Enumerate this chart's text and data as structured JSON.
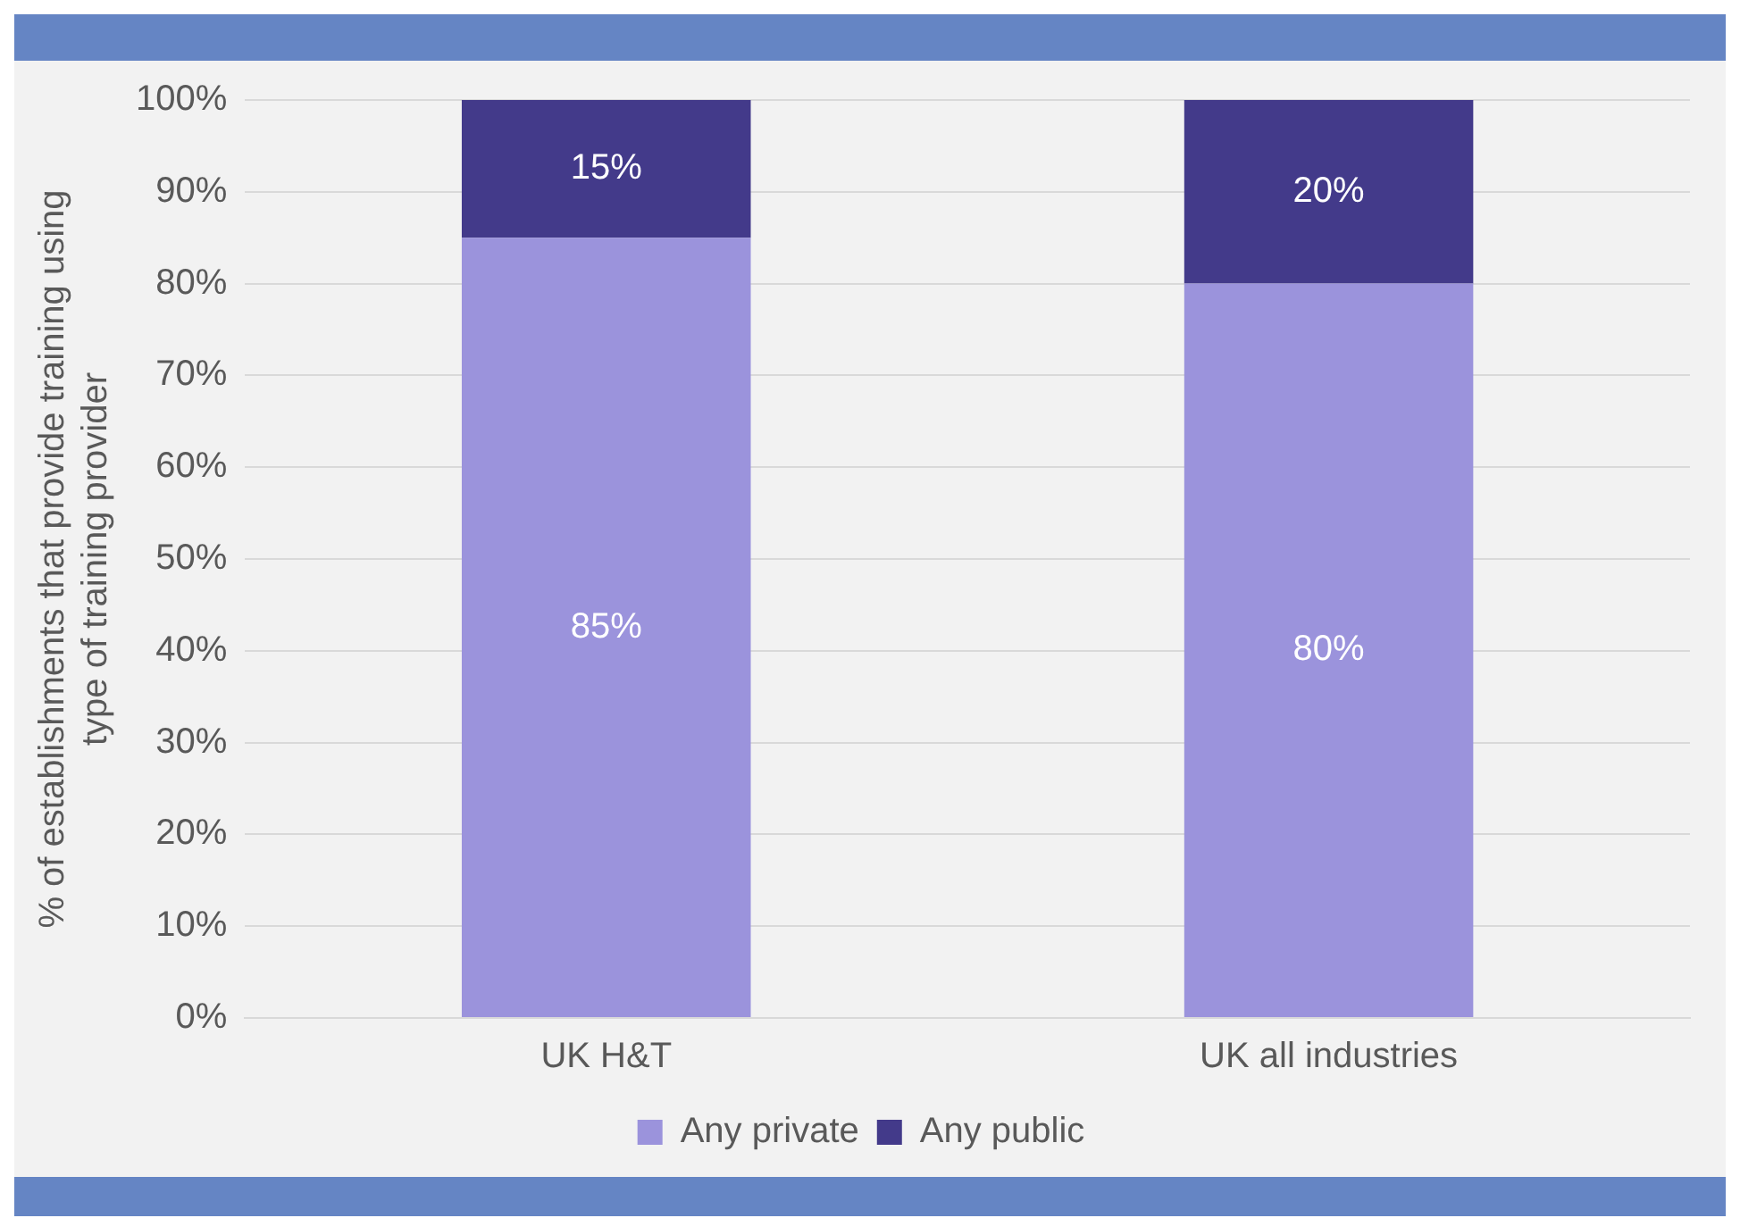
{
  "chart_data": {
    "type": "bar",
    "stacked": true,
    "ylabel": "% of establishments that provide training using type of training provider",
    "categories": [
      "UK H&T",
      "UK all industries"
    ],
    "series": [
      {
        "name": "Any private",
        "color": "#9b93dc",
        "values": [
          85,
          80
        ],
        "value_labels": [
          "85%",
          "80%"
        ]
      },
      {
        "name": "Any public",
        "color": "#433a8a",
        "values": [
          15,
          20
        ],
        "value_labels": [
          "15%",
          "20%"
        ]
      }
    ],
    "ylim": [
      0,
      100
    ],
    "yticks": [
      {
        "value": 0,
        "label": "0%"
      },
      {
        "value": 10,
        "label": "10%"
      },
      {
        "value": 20,
        "label": "20%"
      },
      {
        "value": 30,
        "label": "30%"
      },
      {
        "value": 40,
        "label": "40%"
      },
      {
        "value": 50,
        "label": "50%"
      },
      {
        "value": 60,
        "label": "60%"
      },
      {
        "value": 70,
        "label": "70%"
      },
      {
        "value": 80,
        "label": "80%"
      },
      {
        "value": 90,
        "label": "90%"
      },
      {
        "value": 100,
        "label": "100%"
      }
    ],
    "grid": "y",
    "legend": "bottom"
  }
}
